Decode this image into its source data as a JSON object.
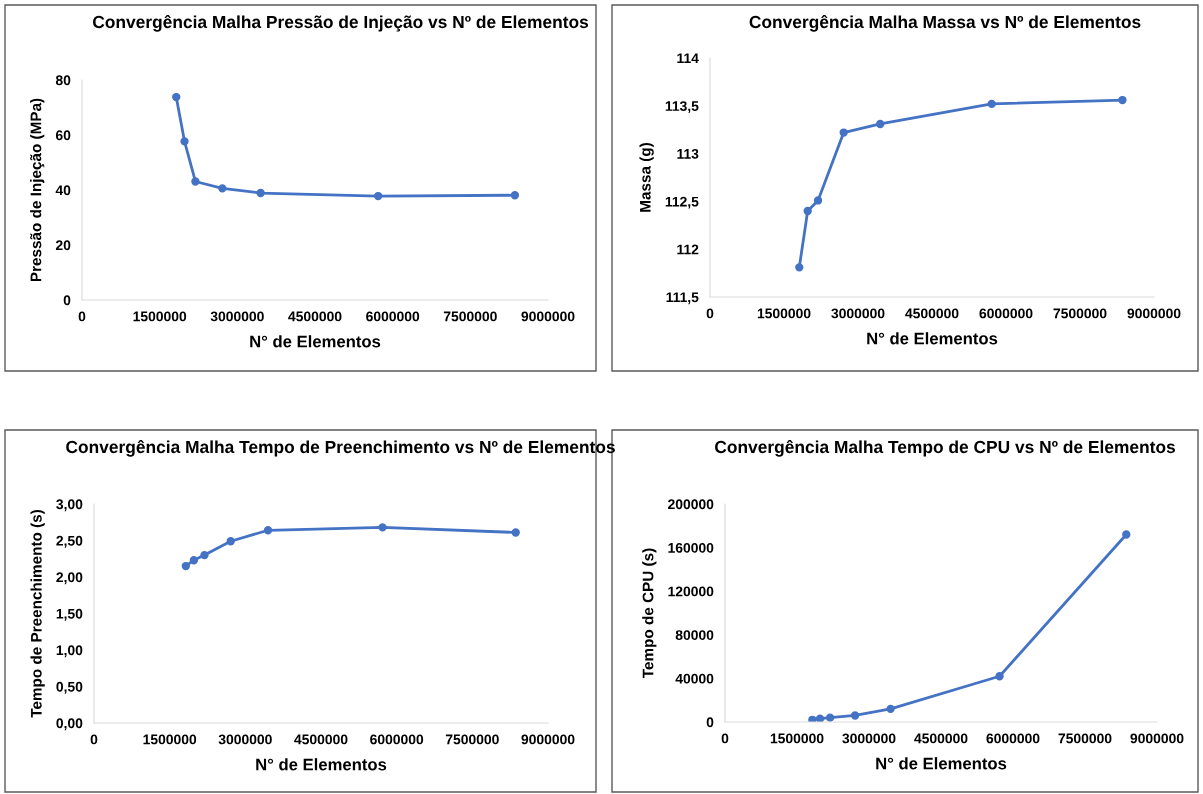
{
  "chart_data": [
    {
      "type": "line",
      "title": "Convergência Malha Pressão de Injeção vs Nº de Elementos",
      "xlabel": "N° de Elementos",
      "ylabel": "Pressão de Injeção (MPa)",
      "marker": "circle",
      "line_style": "solid",
      "grid": false,
      "legend": false,
      "x": [
        1820000,
        1980000,
        2190000,
        2710000,
        3450000,
        5720000,
        8360000
      ],
      "series": [
        {
          "color": "#4472c4",
          "values": [
            73.8,
            57.7,
            43.1,
            40.6,
            38.9,
            37.8,
            38.1
          ]
        }
      ],
      "xlim": [
        0,
        9000000
      ],
      "xticks": [
        0,
        1500000,
        3000000,
        4500000,
        6000000,
        7500000,
        9000000
      ],
      "ylim": [
        0,
        80
      ],
      "yticks": [
        0,
        20,
        40,
        60,
        80
      ]
    },
    {
      "type": "line",
      "title": "Convergência Malha Massa vs Nº de Elementos",
      "xlabel": "N° de Elementos",
      "ylabel": "Massa (g)",
      "marker": "circle",
      "line_style": "solid",
      "grid": false,
      "legend": false,
      "x": [
        1810000,
        1980000,
        2190000,
        2710000,
        3450000,
        5710000,
        8360000
      ],
      "series": [
        {
          "color": "#4472c4",
          "values": [
            111.81,
            112.4,
            112.51,
            113.22,
            113.31,
            113.52,
            113.56
          ]
        }
      ],
      "xlim": [
        0,
        9000000
      ],
      "xticks": [
        0,
        1500000,
        3000000,
        4500000,
        6000000,
        7500000,
        9000000
      ],
      "ylim": [
        111.5,
        114
      ],
      "yticks": [
        {
          "value": 111.5,
          "label": "111,5"
        },
        112,
        {
          "value": 112.5,
          "label": "112,5"
        },
        113,
        {
          "value": 113.5,
          "label": "113,5"
        },
        114
      ]
    },
    {
      "type": "line",
      "title": "Convergência Malha Tempo de Preenchimento vs Nº de Elementos",
      "xlabel": "N° de Elementos",
      "ylabel": "Tempo de Preenchimento (s)",
      "marker": "circle",
      "line_style": "solid",
      "grid": false,
      "legend": false,
      "x": [
        1820000,
        1980000,
        2190000,
        2710000,
        3450000,
        5720000,
        8360000
      ],
      "series": [
        {
          "color": "#4472c4",
          "values": [
            2.15,
            2.23,
            2.3,
            2.49,
            2.64,
            2.68,
            2.61
          ]
        }
      ],
      "xlim": [
        0,
        9000000
      ],
      "xticks": [
        0,
        1500000,
        3000000,
        4500000,
        6000000,
        7500000,
        9000000
      ],
      "ylim": [
        0,
        3
      ],
      "yticks": [
        {
          "value": 0,
          "label": "0,00"
        },
        {
          "value": 0.5,
          "label": "0,50"
        },
        {
          "value": 1,
          "label": "1,00"
        },
        {
          "value": 1.5,
          "label": "1,50"
        },
        {
          "value": 2,
          "label": "2,00"
        },
        {
          "value": 2.5,
          "label": "2,50"
        },
        {
          "value": 3,
          "label": "3,00"
        }
      ]
    },
    {
      "type": "line",
      "title": "Convergência Malha Tempo de CPU vs Nº de Elementos",
      "xlabel": "N° de Elementos",
      "ylabel": "Tempo de CPU (s)",
      "marker": "circle",
      "line_style": "solid",
      "grid": false,
      "legend": false,
      "x": [
        1820000,
        1980000,
        2190000,
        2710000,
        3450000,
        5720000,
        8360000
      ],
      "series": [
        {
          "color": "#4472c4",
          "values": [
            2000,
            3000,
            4000,
            6000,
            12000,
            42000,
            172000
          ]
        }
      ],
      "xlim": [
        0,
        9000000
      ],
      "xticks": [
        0,
        1500000,
        3000000,
        4500000,
        6000000,
        7500000,
        9000000
      ],
      "ylim": [
        0,
        200000
      ],
      "yticks": [
        0,
        40000,
        80000,
        120000,
        160000,
        200000
      ]
    }
  ]
}
